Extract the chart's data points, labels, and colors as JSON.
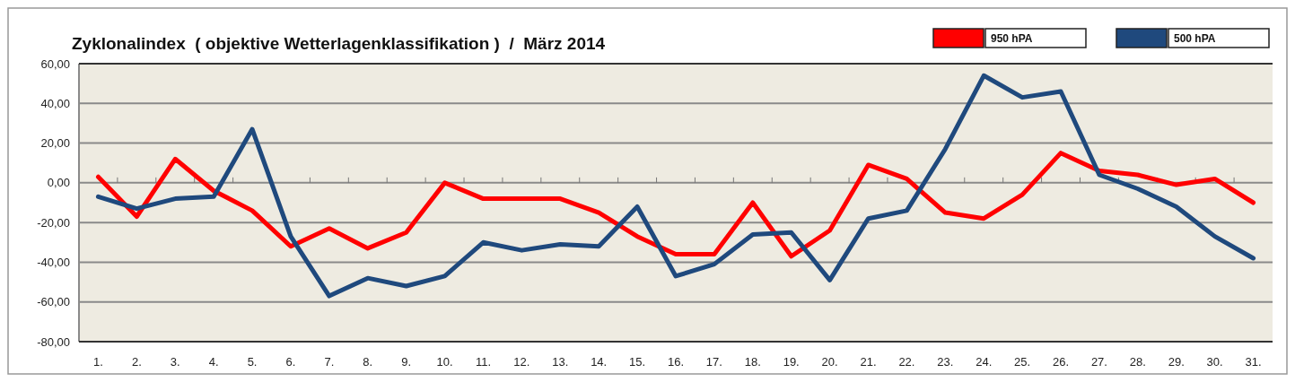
{
  "chart_data": {
    "type": "line",
    "title": "Zyklonalindex  ( objektive Wetterlagenklassifikation )  /  März 2014",
    "categories": [
      "1.",
      "2.",
      "3.",
      "4.",
      "5.",
      "6.",
      "7.",
      "8.",
      "9.",
      "10.",
      "11.",
      "12.",
      "13.",
      "14.",
      "15.",
      "16.",
      "17.",
      "18.",
      "19.",
      "20.",
      "21.",
      "22.",
      "23.",
      "24.",
      "25.",
      "26.",
      "27.",
      "28.",
      "29.",
      "30.",
      "31."
    ],
    "series": [
      {
        "name": "950 hPA",
        "color": "#ff0000",
        "values": [
          3,
          -17,
          12,
          -4,
          -14,
          -32,
          -23,
          -33,
          -25,
          0,
          -8,
          -8,
          -8,
          -15,
          -27,
          -36,
          -36,
          -10,
          -37,
          -24,
          9,
          2,
          -15,
          -18,
          -6,
          15,
          6,
          4,
          -1,
          2,
          -10
        ]
      },
      {
        "name": "500 hPA",
        "color": "#1f497d",
        "values": [
          -7,
          -13,
          -8,
          -7,
          27,
          -27,
          -57,
          -48,
          -52,
          -47,
          -30,
          -34,
          -31,
          -32,
          -12,
          -47,
          -41,
          -26,
          -25,
          -49,
          -18,
          -14,
          17,
          54,
          43,
          46,
          4,
          -3,
          -12,
          -27,
          -38
        ]
      }
    ],
    "ylim": [
      -80,
      60
    ],
    "yticks": [
      {
        "value": -80,
        "label": "-80,00"
      },
      {
        "value": -60,
        "label": "-60,00"
      },
      {
        "value": -40,
        "label": "-40,00"
      },
      {
        "value": -20,
        "label": "-20,00"
      },
      {
        "value": 0,
        "label": "0,00"
      },
      {
        "value": 20,
        "label": "20,00"
      },
      {
        "value": 40,
        "label": "40,00"
      },
      {
        "value": 60,
        "label": "60,00"
      }
    ],
    "grid": "y",
    "legend": "top right",
    "line_style": "solid",
    "marker": "none"
  }
}
